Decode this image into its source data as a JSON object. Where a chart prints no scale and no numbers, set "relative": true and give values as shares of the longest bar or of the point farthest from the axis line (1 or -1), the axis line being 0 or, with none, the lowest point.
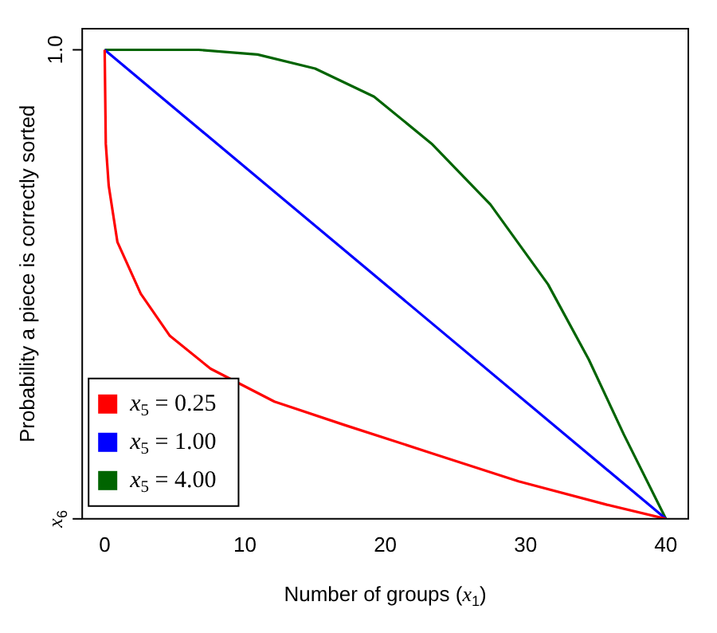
{
  "chart_data": {
    "type": "line",
    "xlabel": "Number of groups (x$_{1}$)",
    "ylabel": "Probability a piece is correctly sorted",
    "xlim": [
      -1.6,
      41.6
    ],
    "xticks": [
      0,
      10,
      20,
      30,
      40
    ],
    "relative": true,
    "annotations": [
      "x$_{6}$",
      "1.0"
    ],
    "grid": false,
    "legend": "bottom left",
    "marker": "none",
    "line_style": "solid",
    "series": [
      {
        "name": "x$_{5}$ = 0.25",
        "color": "#ff0000",
        "x": [
          0,
          0.08,
          0.29,
          0.91,
          2.57,
          4.65,
          7.55,
          12.1,
          17.1,
          23.3,
          29.5,
          35.8,
          40
        ],
        "values": [
          1,
          0.8,
          0.71,
          0.59,
          0.48,
          0.39,
          0.32,
          0.25,
          0.2,
          0.14,
          0.08,
          0.03,
          0
        ]
      },
      {
        "name": "x$_{5}$ = 1.00",
        "color": "#0000ff",
        "x": [
          0,
          40
        ],
        "values": [
          1,
          0
        ]
      },
      {
        "name": "x$_{5}$ = 4.00",
        "color": "#006400",
        "x": [
          0,
          6.7,
          10.9,
          15,
          19.2,
          23.3,
          27.5,
          31.6,
          34.5,
          37,
          40
        ],
        "values": [
          1,
          1,
          0.99,
          0.96,
          0.9,
          0.8,
          0.67,
          0.5,
          0.34,
          0.18,
          0
        ]
      }
    ]
  }
}
